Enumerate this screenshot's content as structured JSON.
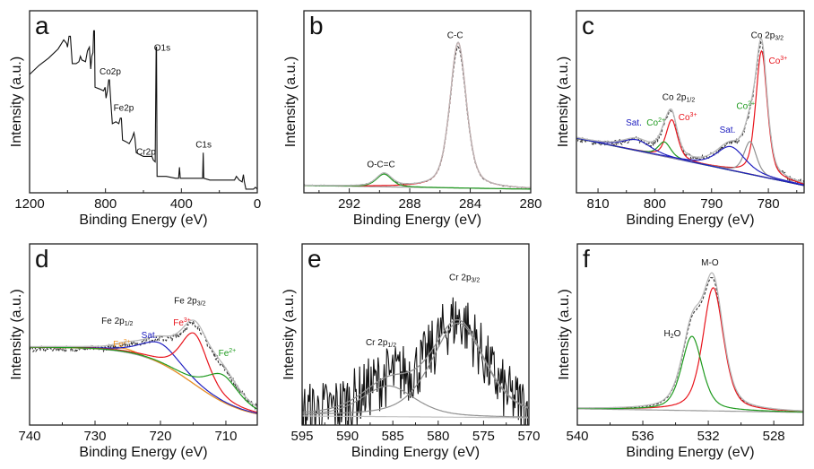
{
  "chart_data": [
    {
      "panel": "a",
      "type": "line",
      "xlabel": "Binding Energy (eV)",
      "ylabel": "Intensity (a.u.)",
      "xlim": [
        1200,
        0
      ],
      "ylim": [
        0,
        100
      ],
      "xticks": [
        1200,
        800,
        400,
        0
      ],
      "minor_xticks": [
        1000,
        600,
        200
      ],
      "spectrum": [
        [
          1200,
          65
        ],
        [
          1150,
          70
        ],
        [
          1100,
          74
        ],
        [
          1050,
          79
        ],
        [
          1020,
          84
        ],
        [
          1005,
          82
        ],
        [
          1000,
          80
        ],
        [
          992,
          86
        ],
        [
          985,
          86
        ],
        [
          975,
          71
        ],
        [
          955,
          71
        ],
        [
          940,
          72
        ],
        [
          932,
          75
        ],
        [
          925,
          73
        ],
        [
          905,
          72
        ],
        [
          895,
          78
        ],
        [
          885,
          80
        ],
        [
          878,
          68
        ],
        [
          872,
          75
        ],
        [
          866,
          77
        ],
        [
          862,
          89
        ],
        [
          858,
          89
        ],
        [
          855,
          58
        ],
        [
          830,
          57
        ],
        [
          810,
          56
        ],
        [
          802,
          58
        ],
        [
          797,
          52
        ],
        [
          790,
          56
        ],
        [
          783,
          62
        ],
        [
          779,
          62
        ],
        [
          772,
          50
        ],
        [
          764,
          38
        ],
        [
          745,
          39
        ],
        [
          730,
          38
        ],
        [
          722,
          41
        ],
        [
          716,
          41
        ],
        [
          710,
          29
        ],
        [
          690,
          28
        ],
        [
          675,
          27
        ],
        [
          660,
          30
        ],
        [
          650,
          33
        ],
        [
          645,
          30
        ],
        [
          638,
          22
        ],
        [
          620,
          21
        ],
        [
          600,
          20
        ],
        [
          570,
          20
        ],
        [
          555,
          20
        ],
        [
          548,
          18
        ],
        [
          538,
          17
        ],
        [
          533,
          80
        ],
        [
          531,
          80
        ],
        [
          528,
          9
        ],
        [
          480,
          9
        ],
        [
          430,
          8
        ],
        [
          415,
          8
        ],
        [
          410,
          14
        ],
        [
          406,
          8
        ],
        [
          350,
          8
        ],
        [
          300,
          8
        ],
        [
          288,
          8
        ],
        [
          285,
          22
        ],
        [
          282,
          8
        ],
        [
          250,
          7
        ],
        [
          200,
          7
        ],
        [
          150,
          7
        ],
        [
          120,
          7
        ],
        [
          110,
          9
        ],
        [
          95,
          7
        ],
        [
          80,
          6
        ],
        [
          73,
          10
        ],
        [
          68,
          6
        ],
        [
          60,
          2
        ],
        [
          40,
          2
        ],
        [
          20,
          2
        ],
        [
          10,
          3
        ],
        [
          0,
          2
        ]
      ],
      "line_color": "#111111",
      "annotations": [
        {
          "text": "O1s",
          "x": 501,
          "y": 78,
          "color": "#111111"
        },
        {
          "text": "Co2p",
          "x": 775,
          "y": 65,
          "color": "#111111"
        },
        {
          "text": "Fe2p",
          "x": 704,
          "y": 45,
          "color": "#111111"
        },
        {
          "text": "Cr2p",
          "x": 586,
          "y": 21,
          "color": "#111111"
        },
        {
          "text": "C1s",
          "x": 283,
          "y": 25,
          "color": "#111111"
        }
      ]
    },
    {
      "panel": "b",
      "type": "line",
      "xlabel": "Binding Energy (eV)",
      "ylabel": "Intensity (a.u.)",
      "xlim": [
        295,
        280
      ],
      "ylim": [
        0,
        100
      ],
      "xticks": [
        292,
        288,
        284,
        280
      ],
      "minor_xticks": [
        294,
        290,
        286,
        282
      ],
      "background": {
        "type": "linear",
        "y": [
          4,
          2
        ],
        "color": "#9a9a9a"
      },
      "components": [
        {
          "name": "C-C",
          "color": "#e8141c",
          "center": 284.8,
          "fwhm": 1.3,
          "height": 80
        },
        {
          "name": "O-C=C",
          "color": "#1e9a1e",
          "center": 289.7,
          "fwhm": 1.2,
          "height": 7
        }
      ],
      "envelope_color": "#b8b8b8",
      "experimental_style": "dashed",
      "annotations": [
        {
          "text": "C-C",
          "x": 285.0,
          "y": 85,
          "color": "#111111"
        },
        {
          "text": "O-C=C",
          "x": 289.9,
          "y": 14,
          "color": "#111111"
        }
      ]
    },
    {
      "panel": "c",
      "type": "line",
      "xlabel": "Binding Energy (eV)",
      "ylabel": "Intensity (a.u.)",
      "xlim": [
        813.8,
        773.7
      ],
      "ylim": [
        0,
        100
      ],
      "xticks": [
        810,
        800,
        790,
        780
      ],
      "minor_xticks": [
        805,
        795,
        785,
        775
      ],
      "background": {
        "type": "linear",
        "y": [
          30,
          4
        ],
        "color": "#2020c0"
      },
      "components": [
        {
          "name": "Co3+",
          "color": "#e8141c",
          "center": 781.2,
          "fwhm": 2.4,
          "height": 69
        },
        {
          "name": "Co3+",
          "color": "#e8141c",
          "center": 797.0,
          "fwhm": 2.4,
          "height": 21
        },
        {
          "name": "Co2+",
          "color": "#909090",
          "center": 783.2,
          "fwhm": 2.6,
          "height": 18
        },
        {
          "name": "Co2+",
          "color": "#1e9a1e",
          "center": 798.3,
          "fwhm": 2.6,
          "height": 8
        },
        {
          "name": "Sat.",
          "color": "#2020c0",
          "center": 786.6,
          "fwhm": 6,
          "height": 13
        },
        {
          "name": "Sat.",
          "color": "#2020c0",
          "center": 803.2,
          "fwhm": 6,
          "height": 6
        }
      ],
      "envelope_color": "#b8b8b8",
      "experimental_style": "dashed",
      "annotations": [
        {
          "text": "Co 2p",
          "sub": "3/2",
          "x": 780.2,
          "y": 85,
          "color": "#111111"
        },
        {
          "text": "Co",
          "sup": "3+",
          "x": 778.3,
          "y": 71,
          "color": "#e8141c"
        },
        {
          "text": "Co 2p",
          "sub": "1/2",
          "x": 795.8,
          "y": 51,
          "color": "#111111"
        },
        {
          "text": "Co",
          "sup": "3+",
          "x": 794.2,
          "y": 40,
          "color": "#e8141c"
        },
        {
          "text": "Sat.",
          "x": 803.7,
          "y": 37,
          "color": "#2020c0"
        },
        {
          "text": "Co",
          "sup": "2+",
          "x": 799.8,
          "y": 37,
          "color": "#1e9a1e"
        },
        {
          "text": "Co",
          "sup": "2+",
          "x": 784.0,
          "y": 46,
          "color": "#1e9a1e"
        },
        {
          "text": "Sat.",
          "x": 787.2,
          "y": 33,
          "color": "#2020c0"
        }
      ]
    },
    {
      "panel": "d",
      "type": "line",
      "xlabel": "Binding Energy (eV)",
      "ylabel": "Intensity (a.u.)",
      "xlim": [
        740,
        705.2
      ],
      "ylim": [
        0,
        100
      ],
      "xticks": [
        740,
        730,
        720,
        710
      ],
      "minor_xticks": [
        735,
        725,
        715
      ],
      "background": {
        "type": "shirley",
        "low": 3,
        "high": 43,
        "center": 715,
        "width": 4,
        "color": "#9a9a9a"
      },
      "components": [
        {
          "name": "Fe2+",
          "color": "#f0901e",
          "center": 725.5,
          "fwhm": 4,
          "height": 2
        },
        {
          "name": "Sat.",
          "color": "#2020c0",
          "center": 720.0,
          "fwhm": 7,
          "height": 11
        },
        {
          "name": "Fe3+",
          "color": "#e8141c",
          "center": 714.8,
          "fwhm": 5,
          "height": 28
        },
        {
          "name": "Fe2+",
          "color": "#1e9a1e",
          "center": 710.5,
          "fwhm": 6,
          "height": 15
        }
      ],
      "envelope_color": "#b8b8b8",
      "experimental_style": "dashed",
      "annotations": [
        {
          "text": "Fe 2p",
          "sub": "3/2",
          "x": 715.5,
          "y": 67,
          "color": "#111111"
        },
        {
          "text": "Fe 2p",
          "sub": "1/2",
          "x": 726.6,
          "y": 56,
          "color": "#111111"
        },
        {
          "text": "Fe",
          "sup": "3+",
          "x": 716.7,
          "y": 55,
          "color": "#e8141c"
        },
        {
          "text": "Sat.",
          "x": 721.7,
          "y": 48,
          "color": "#2020c0"
        },
        {
          "text": "Fe",
          "sup": "2+",
          "x": 725.9,
          "y": 43,
          "color": "#f0901e"
        },
        {
          "text": "Fe",
          "sup": "2+",
          "x": 709.8,
          "y": 38,
          "color": "#1e9a1e"
        }
      ]
    },
    {
      "panel": "e",
      "type": "line",
      "xlabel": "Binding Energy (eV)",
      "ylabel": "Intensity (a.u.)",
      "xlim": [
        595,
        570
      ],
      "ylim": [
        0,
        100
      ],
      "xticks": [
        595,
        590,
        585,
        580,
        575,
        570
      ],
      "minor_xticks": [
        592.5,
        587.5,
        582.5,
        577.5,
        572.5
      ],
      "background": {
        "type": "linear",
        "y": [
          5,
          4
        ],
        "color": "#c0c0c0"
      },
      "components": [
        {
          "name": "Cr 2p3/2",
          "color": "#909090",
          "center": 577.8,
          "fwhm": 7,
          "height": 52
        },
        {
          "name": "Cr 2p1/2",
          "color": "#909090",
          "center": 585.5,
          "fwhm": 7,
          "height": 17
        }
      ],
      "envelope_color": "#909090",
      "experimental_style": "noisy",
      "annotations": [
        {
          "text": "Cr 2p",
          "sub": "3/2",
          "x": 577.1,
          "y": 80,
          "color": "#111111"
        },
        {
          "text": "Cr 2p",
          "sub": "1/2",
          "x": 586.3,
          "y": 44,
          "color": "#111111"
        }
      ]
    },
    {
      "panel": "f",
      "type": "line",
      "xlabel": "Binding Energy (eV)",
      "ylabel": "Intensity (a.u.)",
      "xlim": [
        540,
        526.2
      ],
      "ylim": [
        0,
        100
      ],
      "xticks": [
        540,
        536,
        532,
        528
      ],
      "minor_xticks": [
        538,
        534,
        530
      ],
      "background": {
        "type": "linear",
        "y": [
          9,
          7
        ],
        "color": "#9a9a9a"
      },
      "components": [
        {
          "name": "M-O",
          "color": "#e8141c",
          "center": 531.7,
          "fwhm": 1.5,
          "height": 68
        },
        {
          "name": "H2O",
          "color": "#1e9a1e",
          "center": 533.0,
          "fwhm": 1.5,
          "height": 41
        }
      ],
      "envelope_color": "#b8b8b8",
      "experimental_style": "dashed",
      "annotations": [
        {
          "text": "M-O",
          "x": 531.9,
          "y": 88,
          "color": "#111111"
        },
        {
          "text": "H",
          "sub": "2",
          "after": "O",
          "x": 534.2,
          "y": 49,
          "color": "#111111"
        }
      ]
    }
  ]
}
